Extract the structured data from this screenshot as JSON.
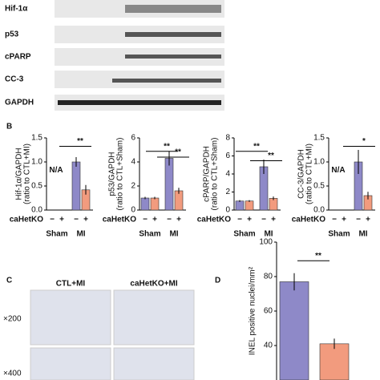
{
  "blot": {
    "rows": [
      "Hif-1α",
      "p53",
      "cPARP",
      "CC-3",
      "GAPDH"
    ]
  },
  "panel_labels": [
    "B",
    "C",
    "D"
  ],
  "panel_c": {
    "columns": [
      "CTL+MI",
      "caHetKO+MI"
    ],
    "rows": [
      "×200",
      "×400"
    ]
  },
  "chart_data": [
    {
      "type": "bar",
      "ylabel": [
        "Hif-1α/GAPDH",
        "(ratio to CTL+MI)"
      ],
      "categories": [
        "−",
        "+",
        "−",
        "+"
      ],
      "groups": [
        "Sham",
        "MI"
      ],
      "row_label": "caHetKO",
      "values": [
        0,
        0,
        1.0,
        0.42
      ],
      "errors": [
        0,
        0,
        0.1,
        0.1
      ],
      "colors": [
        "#8e89c8",
        "#f29b7e",
        "#8e89c8",
        "#f29b7e"
      ],
      "ylim": [
        0,
        1.5
      ],
      "yticks": [
        {
          "value": 0,
          "label": "0.0"
        },
        {
          "value": 0.5,
          "label": "0.5"
        },
        {
          "value": 1,
          "label": "1.0"
        },
        {
          "value": 1.5,
          "label": "1.5"
        }
      ],
      "annotations": [
        "N/A",
        "**"
      ]
    },
    {
      "type": "bar",
      "ylabel": [
        "p53/GAPDH",
        "(ratio to CTL+Sham)"
      ],
      "categories": [
        "−",
        "+",
        "−",
        "+"
      ],
      "groups": [
        "Sham",
        "MI"
      ],
      "row_label": "caHetKO",
      "values": [
        1.0,
        1.0,
        4.3,
        1.6
      ],
      "errors": [
        0.1,
        0.1,
        0.6,
        0.25
      ],
      "colors": [
        "#8e89c8",
        "#f29b7e",
        "#8e89c8",
        "#f29b7e"
      ],
      "ylim": [
        0,
        6
      ],
      "yticks": [
        0,
        2,
        4,
        6
      ],
      "annotations": [
        "**",
        "**"
      ]
    },
    {
      "type": "bar",
      "ylabel": [
        "cPARP/GAPDH",
        "(ratio to CTL+Sham)"
      ],
      "categories": [
        "−",
        "+",
        "−",
        "+"
      ],
      "groups": [
        "Sham",
        "MI"
      ],
      "row_label": "caHetKO",
      "values": [
        1.0,
        1.0,
        4.8,
        1.3
      ],
      "errors": [
        0.1,
        0.1,
        0.8,
        0.2
      ],
      "colors": [
        "#8e89c8",
        "#f29b7e",
        "#8e89c8",
        "#f29b7e"
      ],
      "ylim": [
        0,
        8
      ],
      "yticks": [
        0,
        2,
        4,
        6,
        8
      ],
      "annotations": [
        "**",
        "**"
      ]
    },
    {
      "type": "bar",
      "ylabel": [
        "CC-3/GAPDH",
        "(ratio to CTL+MI)"
      ],
      "categories": [
        "−",
        "+",
        "−",
        "+"
      ],
      "groups": [
        "Sham",
        "MI"
      ],
      "row_label": "caHetKO",
      "values": [
        0,
        0,
        1.0,
        0.3
      ],
      "errors": [
        0,
        0,
        0.25,
        0.08
      ],
      "colors": [
        "#8e89c8",
        "#f29b7e",
        "#8e89c8",
        "#f29b7e"
      ],
      "ylim": [
        0,
        1.5
      ],
      "yticks": [
        {
          "value": 0,
          "label": "0.0"
        },
        {
          "value": 0.5,
          "label": "0.5"
        },
        {
          "value": 1,
          "label": "1.0"
        },
        {
          "value": 1.5,
          "label": "1.5"
        }
      ],
      "annotations": [
        "N/A",
        "*"
      ]
    },
    {
      "type": "bar",
      "ylabel": [
        "INEL positive nuclei/mm²"
      ],
      "values": [
        77,
        41
      ],
      "errors": [
        5,
        3
      ],
      "colors": [
        "#8e89c8",
        "#f29b7e"
      ],
      "ylim": [
        20,
        100
      ],
      "yticks": [
        40,
        60,
        80,
        100
      ],
      "annotations": [
        "**"
      ]
    }
  ]
}
